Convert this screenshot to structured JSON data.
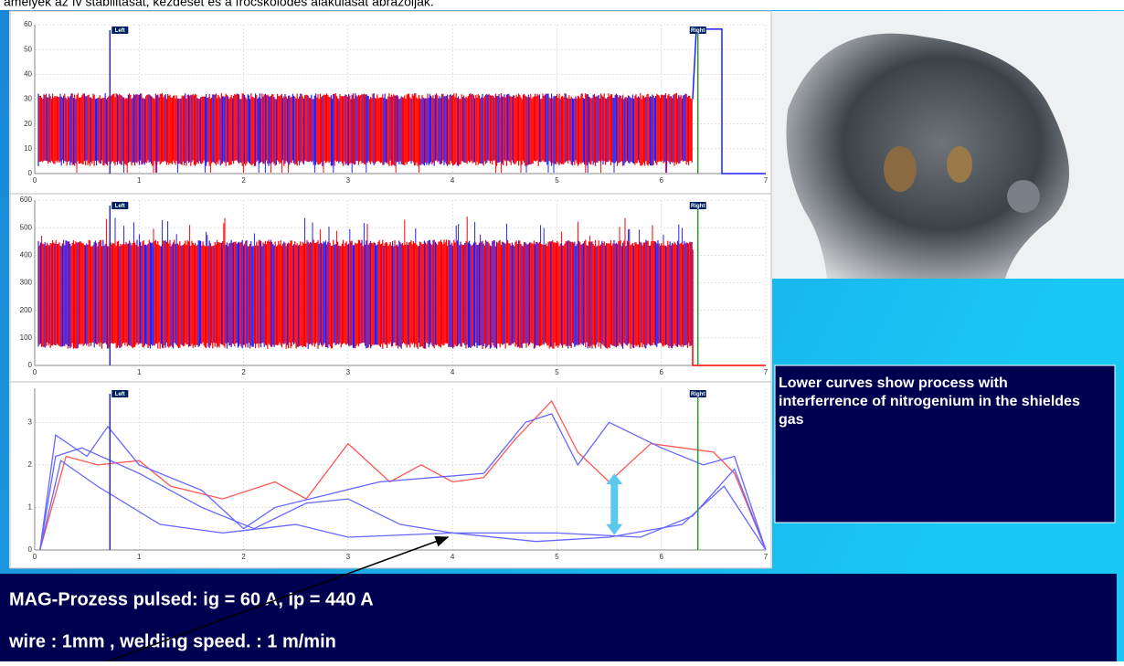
{
  "intro_text": "amelyek az ív stabilitását, kezdését és a fröcskölődés alakulását ábrázolják.",
  "charts": [
    {
      "xlim": [
        0,
        7
      ],
      "xticks": [
        0,
        1,
        2,
        3,
        4,
        5,
        6,
        7
      ],
      "ylim": [
        0,
        60
      ],
      "yticks": [
        0,
        10,
        20,
        30,
        40,
        50,
        60
      ],
      "cursors": [
        {
          "label": "Left",
          "x": 0.72
        },
        {
          "label": "Right",
          "x": 6.35
        }
      ]
    },
    {
      "xlim": [
        0,
        7
      ],
      "xticks": [
        0,
        1,
        2,
        3,
        4,
        5,
        6,
        7
      ],
      "ylim": [
        0,
        600
      ],
      "yticks": [
        0,
        100,
        200,
        300,
        400,
        500,
        600
      ],
      "cursors": [
        {
          "label": "Left",
          "x": 0.72
        },
        {
          "label": "Right",
          "x": 6.35
        }
      ]
    },
    {
      "xlim": [
        0,
        7
      ],
      "xticks": [
        0,
        1,
        2,
        3,
        4,
        5,
        6,
        7
      ],
      "ylim": [
        0,
        3.8
      ],
      "yticks": [
        0,
        1,
        2,
        3
      ],
      "cursors": [
        {
          "label": "Left",
          "x": 0.72
        },
        {
          "label": "Right",
          "x": 6.35
        }
      ],
      "series": [
        {
          "color": "#ff5555",
          "x": [
            0.05,
            0.3,
            0.6,
            1.0,
            1.3,
            1.8,
            2.3,
            2.6,
            3.0,
            3.4,
            3.7,
            4.0,
            4.3,
            4.6,
            4.95,
            5.2,
            5.5,
            5.9,
            6.5,
            6.7,
            7.0
          ],
          "values": [
            0,
            2.2,
            2.0,
            2.1,
            1.5,
            1.2,
            1.6,
            1.2,
            2.5,
            1.6,
            2.0,
            1.6,
            1.7,
            2.6,
            3.5,
            2.3,
            1.6,
            2.5,
            2.3,
            1.8,
            0
          ]
        },
        {
          "color": "#6666ff",
          "x": [
            0.05,
            0.2,
            0.5,
            0.7,
            1.0,
            1.6,
            2.0,
            2.3,
            2.8,
            3.3,
            3.8,
            4.3,
            4.7,
            4.95,
            5.2,
            5.5,
            6.0,
            6.4,
            6.7,
            7.0
          ],
          "values": [
            0,
            2.7,
            2.2,
            2.9,
            2.0,
            1.4,
            0.5,
            1.0,
            1.3,
            1.6,
            1.7,
            1.8,
            3.0,
            3.2,
            2.0,
            3.0,
            2.4,
            2.0,
            2.2,
            0
          ]
        },
        {
          "color": "#6666ff",
          "x": [
            0.05,
            0.2,
            0.45,
            1.0,
            1.6,
            2.1,
            2.6,
            3.0,
            3.5,
            4.0,
            5.0,
            5.8,
            6.3,
            6.7,
            7.0
          ],
          "values": [
            0,
            2.2,
            2.4,
            1.8,
            1.0,
            0.5,
            1.1,
            1.2,
            0.6,
            0.4,
            0.4,
            0.3,
            0.8,
            1.9,
            0
          ]
        },
        {
          "color": "#6666ff",
          "x": [
            0.05,
            0.25,
            0.6,
            1.2,
            1.8,
            2.5,
            3.0,
            4.0,
            4.8,
            5.5,
            6.2,
            6.6,
            7.0
          ],
          "values": [
            0,
            2.1,
            1.5,
            0.6,
            0.4,
            0.6,
            0.3,
            0.4,
            0.2,
            0.3,
            0.6,
            1.5,
            0
          ]
        }
      ]
    }
  ],
  "note": "Lower curves show process with interferrence of nitrogenium in the shieldes gas",
  "footer": [
    "MAG-Prozess pulsed: ig = 60 A, Ip = 440 A",
    "wire : 1mm , welding speed. : 1 m/min"
  ]
}
